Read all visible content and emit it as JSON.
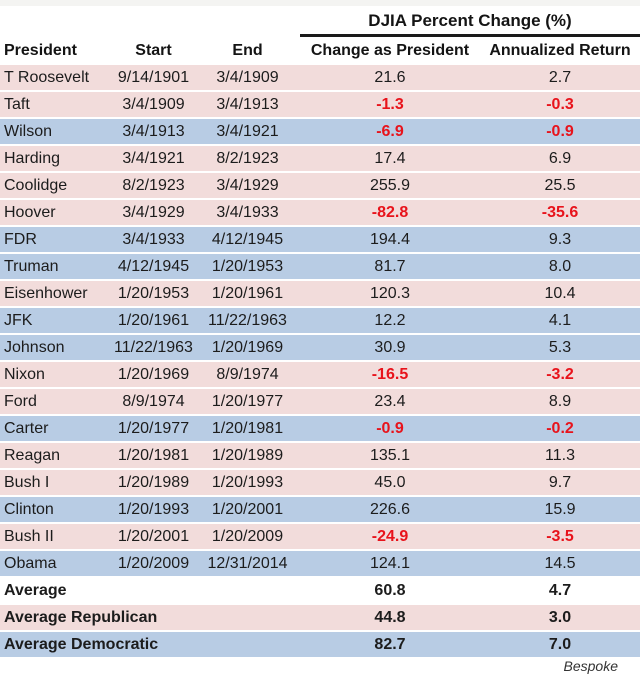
{
  "chart_data": {
    "type": "table",
    "title": "DJIA Percent Change (%)",
    "columns": [
      "President",
      "Start",
      "End",
      "Change as President",
      "Annualized Return"
    ],
    "rows": [
      {
        "president": "T Roosevelt",
        "start": "9/14/1901",
        "end": "3/4/1909",
        "change": "21.6",
        "annualized": "2.7",
        "party": "republican"
      },
      {
        "president": "Taft",
        "start": "3/4/1909",
        "end": "3/4/1913",
        "change": "-1.3",
        "annualized": "-0.3",
        "party": "republican"
      },
      {
        "president": "Wilson",
        "start": "3/4/1913",
        "end": "3/4/1921",
        "change": "-6.9",
        "annualized": "-0.9",
        "party": "democratic"
      },
      {
        "president": "Harding",
        "start": "3/4/1921",
        "end": "8/2/1923",
        "change": "17.4",
        "annualized": "6.9",
        "party": "republican"
      },
      {
        "president": "Coolidge",
        "start": "8/2/1923",
        "end": "3/4/1929",
        "change": "255.9",
        "annualized": "25.5",
        "party": "republican"
      },
      {
        "president": "Hoover",
        "start": "3/4/1929",
        "end": "3/4/1933",
        "change": "-82.8",
        "annualized": "-35.6",
        "party": "republican"
      },
      {
        "president": "FDR",
        "start": "3/4/1933",
        "end": "4/12/1945",
        "change": "194.4",
        "annualized": "9.3",
        "party": "democratic"
      },
      {
        "president": "Truman",
        "start": "4/12/1945",
        "end": "1/20/1953",
        "change": "81.7",
        "annualized": "8.0",
        "party": "democratic"
      },
      {
        "president": "Eisenhower",
        "start": "1/20/1953",
        "end": "1/20/1961",
        "change": "120.3",
        "annualized": "10.4",
        "party": "republican"
      },
      {
        "president": "JFK",
        "start": "1/20/1961",
        "end": "11/22/1963",
        "change": "12.2",
        "annualized": "4.1",
        "party": "democratic"
      },
      {
        "president": "Johnson",
        "start": "11/22/1963",
        "end": "1/20/1969",
        "change": "30.9",
        "annualized": "5.3",
        "party": "democratic"
      },
      {
        "president": "Nixon",
        "start": "1/20/1969",
        "end": "8/9/1974",
        "change": "-16.5",
        "annualized": "-3.2",
        "party": "republican"
      },
      {
        "president": "Ford",
        "start": "8/9/1974",
        "end": "1/20/1977",
        "change": "23.4",
        "annualized": "8.9",
        "party": "republican"
      },
      {
        "president": "Carter",
        "start": "1/20/1977",
        "end": "1/20/1981",
        "change": "-0.9",
        "annualized": "-0.2",
        "party": "democratic"
      },
      {
        "president": "Reagan",
        "start": "1/20/1981",
        "end": "1/20/1989",
        "change": "135.1",
        "annualized": "11.3",
        "party": "republican"
      },
      {
        "president": "Bush I",
        "start": "1/20/1989",
        "end": "1/20/1993",
        "change": "45.0",
        "annualized": "9.7",
        "party": "republican"
      },
      {
        "president": "Clinton",
        "start": "1/20/1993",
        "end": "1/20/2001",
        "change": "226.6",
        "annualized": "15.9",
        "party": "democratic"
      },
      {
        "president": "Bush II",
        "start": "1/20/2001",
        "end": "1/20/2009",
        "change": "-24.9",
        "annualized": "-3.5",
        "party": "republican"
      },
      {
        "president": "Obama",
        "start": "1/20/2009",
        "end": "12/31/2014",
        "change": "124.1",
        "annualized": "14.5",
        "party": "democratic"
      }
    ],
    "summary_rows": [
      {
        "label": "Average",
        "change": "60.8",
        "annualized": "4.7",
        "party": "none"
      },
      {
        "label": "Average Republican",
        "change": "44.8",
        "annualized": "3.0",
        "party": "republican"
      },
      {
        "label": "Average Democratic",
        "change": "82.7",
        "annualized": "7.0",
        "party": "democratic"
      }
    ],
    "layout_hints": {
      "row_shading": "by party",
      "negative_values": "red bold"
    }
  },
  "colors": {
    "republican_row": "#f2dcdb",
    "democratic_row": "#b8cce4",
    "negative_value": "#e8131b",
    "text": "#1c1c1c"
  },
  "footer": {
    "credit": "Bespoke"
  }
}
